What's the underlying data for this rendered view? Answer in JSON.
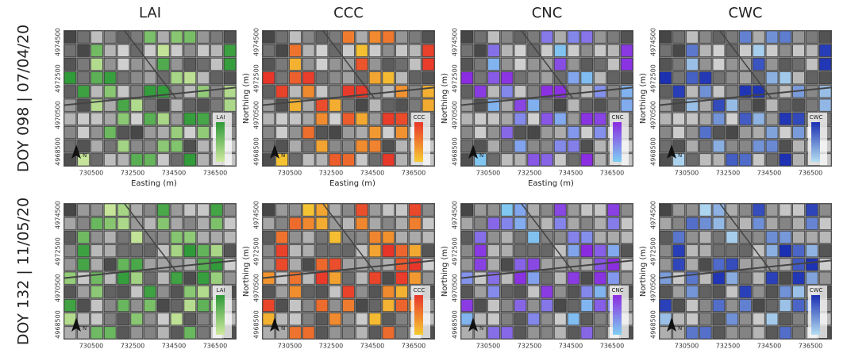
{
  "columns": [
    "LAI",
    "CCC",
    "CNC",
    "CWC"
  ],
  "rows": [
    {
      "label": "DOY 098 | 07/04/20"
    },
    {
      "label": "DOY 132 | 11/05/20"
    }
  ],
  "axes": {
    "x_label": "Easting (m)",
    "y_label": "Northing (m)",
    "x_ticks": [
      "730500",
      "732500",
      "734500",
      "736500"
    ],
    "y_ticks": [
      "4974500",
      "4972500",
      "4970500",
      "4968500"
    ]
  },
  "legend_titles": [
    "LAI",
    "CCC",
    "CNC",
    "CWC"
  ],
  "north_label": "N"
}
